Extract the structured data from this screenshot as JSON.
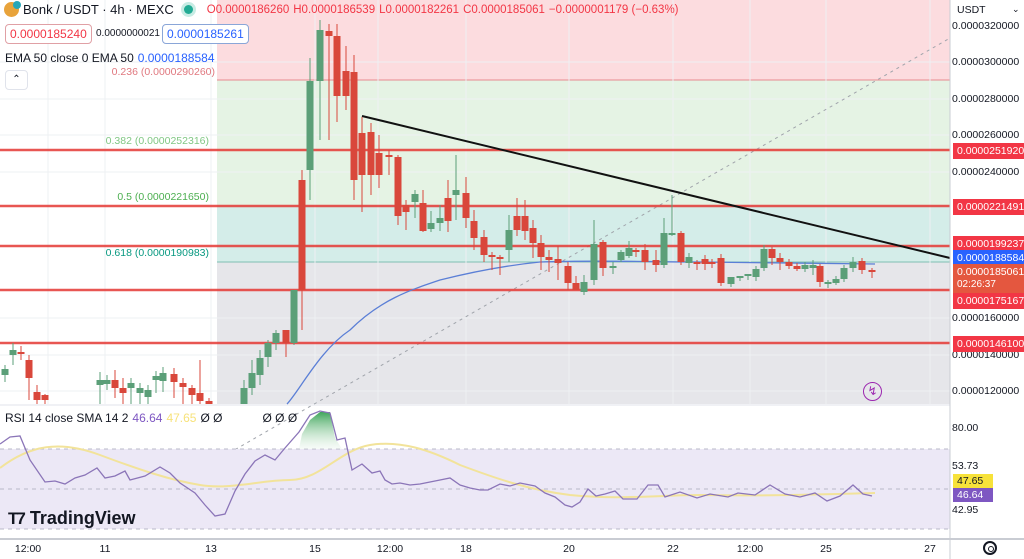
{
  "header": {
    "symbol": "Bonk",
    "pair_sep": "/",
    "quote": "USDT",
    "interval": "4h",
    "exchange": "MEXC",
    "title": "Bonk / USDT · 4h · MEXC",
    "ohlc": {
      "open": "O0.0000186260",
      "high": "H0.0000186539",
      "low": "L0.0000182261",
      "close": "C0.0000185061",
      "change": "−0.0000001179 (−0.63%)"
    }
  },
  "trade": {
    "sell_price": "0.0000185240",
    "spread": "0.0000000021",
    "buy_price": "0.0000185261"
  },
  "ema": {
    "label": "EMA 50 close 0 EMA 50",
    "value": "0.0000188584"
  },
  "fib_levels": [
    {
      "label": "0.236 (0.0000290260)",
      "color": "#e0787f"
    },
    {
      "label": "0.382 (0.0000252316)",
      "color": "#81c784"
    },
    {
      "label": "0.5 (0.0000221650)",
      "color": "#4caf50"
    },
    {
      "label": "0.618 (0.0000190983)",
      "color": "#089981"
    }
  ],
  "price_axis": {
    "currency": "USDT",
    "labels": [
      "0.0000320000",
      "0.0000300000",
      "0.0000280000",
      "0.0000260000",
      "0.0000240000",
      "0.0000160000",
      "0.0000140000",
      "0.0000120000"
    ],
    "tags": [
      {
        "value": "0.0000251920",
        "color": "red"
      },
      {
        "value": "0.0000221491",
        "color": "red"
      },
      {
        "value": "0.0000199237",
        "color": "red"
      },
      {
        "value": "0.0000188584",
        "color": "blue"
      },
      {
        "value": "0.0000185061",
        "color": "orange",
        "countdown": "02:26:37"
      },
      {
        "value": "0.0000175167",
        "color": "red"
      },
      {
        "value": "0.0000146100",
        "color": "red"
      }
    ]
  },
  "rsi": {
    "label": "RSI 14 close SMA 14 2",
    "rsi_value": "46.64",
    "sma_value": "47.65",
    "na": "Ø Ø",
    "na2": "Ø Ø Ø",
    "axis": [
      "80.00",
      "53.73",
      "42.95"
    ],
    "tag_sma": "47.65",
    "tag_rsi": "46.64"
  },
  "time_axis": [
    "12:00",
    "11",
    "13",
    "15",
    "12:00",
    "18",
    "20",
    "22",
    "12:00",
    "25",
    "27"
  ],
  "branding": "TradingView",
  "colors": {
    "up": "#5b9f78",
    "down": "#d9473b",
    "line_red": "#e53935",
    "ema": "#5b7fd6",
    "rsi": "#8b75b8",
    "rsi_sma": "#f2e39a"
  },
  "chart_data": {
    "type": "candlestick",
    "title": "Bonk / USDT · 4h · MEXC",
    "ylabel": "USDT",
    "horizontal_levels": [
      2.5192e-05,
      2.21491e-05,
      1.99237e-05,
      1.75167e-05,
      1.461e-05
    ],
    "ema50_last": 1.88584e-05,
    "last_close": 1.85061e-05,
    "rsi_last": 46.64,
    "rsi_sma_last": 47.65
  }
}
